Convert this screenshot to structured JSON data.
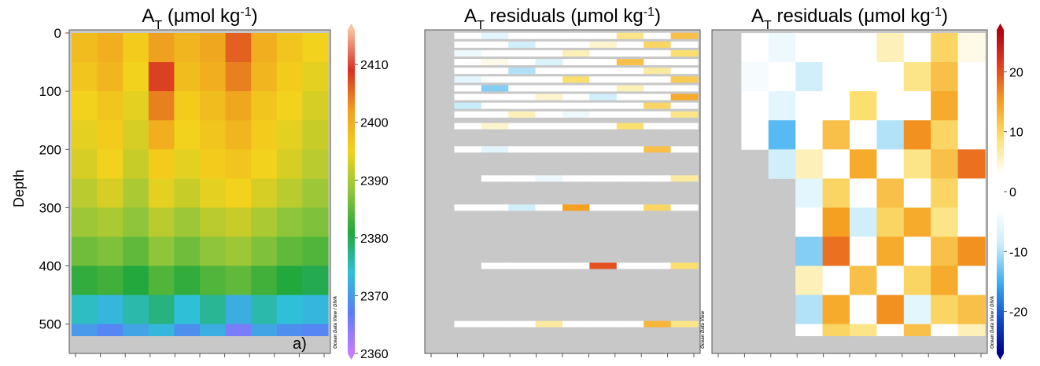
{
  "chart_data": [
    {
      "type": "heatmap",
      "title": {
        "main": "A",
        "sub": "T",
        "rest": " (μmol kg",
        "sup": "-1",
        "end": ")"
      },
      "ylabel": "Depth",
      "ylim": [
        0,
        545
      ],
      "yticks": [
        0,
        100,
        200,
        300,
        400,
        500
      ],
      "depth_edges": [
        0,
        50,
        100,
        150,
        200,
        250,
        300,
        350,
        400,
        450,
        500,
        520
      ],
      "values": [
        [
          2398,
          2400,
          2396,
          2402,
          2399,
          2401,
          2406,
          2400,
          2397,
          2395
        ],
        [
          2397,
          2399,
          2395,
          2408,
          2398,
          2400,
          2404,
          2399,
          2396,
          2394
        ],
        [
          2395,
          2397,
          2394,
          2404,
          2396,
          2398,
          2401,
          2397,
          2395,
          2393
        ],
        [
          2394,
          2396,
          2393,
          2400,
          2395,
          2397,
          2399,
          2396,
          2394,
          2392
        ],
        [
          2393,
          2395,
          2392,
          2396,
          2394,
          2396,
          2397,
          2395,
          2393,
          2391
        ],
        [
          2391,
          2393,
          2390,
          2394,
          2392,
          2394,
          2395,
          2393,
          2391,
          2389
        ],
        [
          2389,
          2390,
          2388,
          2391,
          2389,
          2391,
          2392,
          2390,
          2388,
          2387
        ],
        [
          2386,
          2387,
          2385,
          2388,
          2386,
          2388,
          2389,
          2387,
          2385,
          2384
        ],
        [
          2382,
          2383,
          2381,
          2384,
          2382,
          2384,
          2385,
          2383,
          2381,
          2380
        ],
        [
          2375,
          2373,
          2376,
          2378,
          2374,
          2377,
          2372,
          2376,
          2374,
          2373
        ],
        [
          2370,
          2368,
          2371,
          2373,
          2369,
          2372,
          2365,
          2371,
          2369,
          2368
        ]
      ],
      "colormap": [
        "#c77cff",
        "#5b7cf7",
        "#2fc0d8",
        "#22a83c",
        "#8fc53a",
        "#f2d21d",
        "#f0a020",
        "#d83020",
        "#f8c0a0"
      ],
      "clim": [
        2360,
        2416
      ],
      "cticks": [
        2360,
        2370,
        2380,
        2390,
        2400,
        2410
      ],
      "colorbar": true,
      "annotation": "a)",
      "watermark": "Ocean Data View / DIVA"
    },
    {
      "type": "strips",
      "title": {
        "main": "A",
        "sub": "T",
        "rest": " residuals (μmol kg",
        "sup": "-1",
        "end": ")"
      },
      "ylim": [
        0,
        545
      ],
      "depths": [
        5,
        20,
        35,
        50,
        65,
        80,
        95,
        110,
        125,
        140,
        160,
        200,
        250,
        300,
        400,
        500
      ],
      "values": [
        [
          null,
          0,
          -6,
          0,
          3,
          0,
          0,
          8,
          0,
          12
        ],
        [
          null,
          0,
          0,
          -8,
          0,
          0,
          5,
          0,
          10,
          0
        ],
        [
          null,
          -5,
          0,
          0,
          0,
          6,
          0,
          0,
          0,
          9
        ],
        [
          null,
          0,
          4,
          0,
          -7,
          0,
          0,
          12,
          0,
          0
        ],
        [
          null,
          0,
          0,
          -10,
          0,
          0,
          0,
          0,
          7,
          0
        ],
        [
          null,
          -6,
          0,
          0,
          0,
          9,
          0,
          0,
          0,
          11
        ],
        [
          null,
          0,
          -12,
          0,
          0,
          0,
          0,
          6,
          0,
          0
        ],
        [
          null,
          0,
          0,
          0,
          5,
          0,
          -8,
          0,
          0,
          14
        ],
        [
          null,
          -9,
          0,
          0,
          0,
          0,
          0,
          0,
          10,
          0
        ],
        [
          null,
          0,
          0,
          6,
          0,
          -5,
          0,
          0,
          0,
          8
        ],
        [
          null,
          0,
          5,
          0,
          0,
          0,
          0,
          9,
          0,
          0
        ],
        [
          null,
          0,
          -6,
          0,
          0,
          0,
          0,
          0,
          12,
          0
        ],
        [
          null,
          null,
          0,
          0,
          -5,
          0,
          0,
          0,
          0,
          7
        ],
        [
          null,
          0,
          0,
          -8,
          0,
          15,
          0,
          0,
          10,
          0
        ],
        [
          null,
          null,
          0,
          0,
          0,
          0,
          20,
          0,
          0,
          9
        ],
        [
          null,
          0,
          0,
          0,
          7,
          0,
          0,
          0,
          13,
          8
        ]
      ],
      "colormap": [
        "#00008c",
        "#1050d0",
        "#40b0f0",
        "#c8ecfa",
        "#ffffff",
        "#ffffff",
        "#fbe070",
        "#f5a020",
        "#e04020",
        "#b00010"
      ],
      "clim": [
        -27,
        27
      ],
      "colorbar": false,
      "watermark": "Ocean Data View"
    },
    {
      "type": "heatmap",
      "title": {
        "main": "A",
        "sub": "T",
        "rest": " residuals (μmol kg",
        "sup": "-1",
        "end": ")"
      },
      "ylim": [
        0,
        545
      ],
      "depth_edges": [
        0,
        50,
        100,
        150,
        200,
        250,
        300,
        350,
        400,
        450,
        500,
        520
      ],
      "values": [
        [
          null,
          0,
          -5,
          3,
          0,
          0,
          6,
          0,
          10,
          4
        ],
        [
          null,
          -4,
          0,
          -8,
          2,
          0,
          0,
          8,
          12,
          0
        ],
        [
          null,
          0,
          -6,
          0,
          0,
          9,
          0,
          0,
          14,
          3
        ],
        [
          null,
          0,
          -14,
          0,
          12,
          0,
          -10,
          16,
          10,
          0
        ],
        [
          null,
          null,
          -8,
          6,
          0,
          14,
          0,
          8,
          12,
          18
        ],
        [
          null,
          null,
          null,
          -6,
          10,
          0,
          12,
          0,
          10,
          0
        ],
        [
          null,
          null,
          null,
          0,
          15,
          -8,
          10,
          14,
          8,
          0
        ],
        [
          null,
          null,
          null,
          -12,
          18,
          0,
          14,
          0,
          12,
          16
        ],
        [
          null,
          null,
          null,
          6,
          0,
          12,
          0,
          10,
          14,
          0
        ],
        [
          null,
          null,
          null,
          -10,
          14,
          0,
          16,
          -6,
          10,
          12
        ],
        [
          null,
          null,
          null,
          0,
          10,
          8,
          0,
          12,
          0,
          6
        ]
      ],
      "colormap": [
        "#00008c",
        "#1050d0",
        "#40b0f0",
        "#c8ecfa",
        "#ffffff",
        "#ffffff",
        "#fbe070",
        "#f5a020",
        "#e04020",
        "#b00010"
      ],
      "clim": [
        -27,
        27
      ],
      "cticks": [
        -20,
        -10,
        0,
        10,
        20
      ],
      "colorbar": true,
      "watermark": "Ocean Data View / DIVA"
    }
  ]
}
